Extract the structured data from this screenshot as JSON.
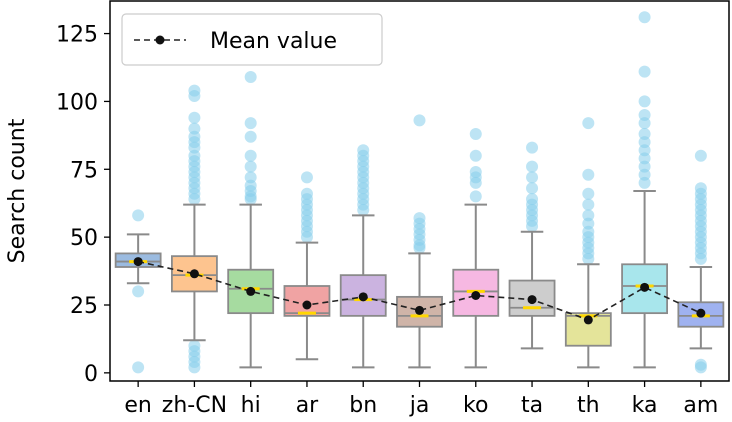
{
  "chart_data": {
    "type": "box",
    "title": "",
    "xlabel": "",
    "ylabel": "Search count",
    "ylim": [
      -3,
      137
    ],
    "yticks": [
      0,
      25,
      50,
      75,
      100,
      125
    ],
    "categories": [
      "en",
      "zh-CN",
      "hi",
      "ar",
      "bn",
      "ja",
      "ko",
      "ta",
      "th",
      "ka",
      "am"
    ],
    "colors": [
      "#9bbbe0",
      "#fdc48f",
      "#a6dba0",
      "#f0a3a3",
      "#cbb3e0",
      "#cfb4a8",
      "#f6b8e2",
      "#cdcdcd",
      "#e4e49a",
      "#a8e6ec",
      "#9fb2f0"
    ],
    "mean_color": "#222222",
    "median_color": "#ffd700",
    "outlier_color": "#87ceeb",
    "boxes": [
      {
        "q1": 39,
        "median": 41,
        "q3": 44,
        "whislo": 33,
        "whishi": 51,
        "mean": 41,
        "fliers": [
          58,
          30,
          2
        ]
      },
      {
        "q1": 30,
        "median": 36,
        "q3": 43,
        "whislo": 12,
        "whishi": 62,
        "mean": 36.5,
        "fliers": [
          104,
          102,
          94,
          90,
          87,
          85,
          83,
          80,
          78,
          76,
          74,
          72,
          70,
          68,
          66,
          64,
          10,
          8,
          6,
          4,
          2
        ]
      },
      {
        "q1": 22,
        "median": 31,
        "q3": 38,
        "whislo": 2,
        "whishi": 62,
        "mean": 30,
        "fliers": [
          109,
          92,
          87,
          80,
          76,
          72,
          69,
          67,
          65,
          64
        ]
      },
      {
        "q1": 21,
        "median": 22,
        "q3": 32,
        "whislo": 5,
        "whishi": 48,
        "mean": 25,
        "fliers": [
          72,
          66,
          64,
          62,
          60,
          58,
          56,
          54,
          52,
          50
        ]
      },
      {
        "q1": 21,
        "median": 27,
        "q3": 36,
        "whislo": 2,
        "whishi": 58,
        "mean": 28,
        "fliers": [
          82,
          80,
          78,
          76,
          74,
          72,
          70,
          68,
          66,
          64,
          62,
          60
        ]
      },
      {
        "q1": 17,
        "median": 21,
        "q3": 28,
        "whislo": 2,
        "whishi": 44,
        "mean": 23,
        "fliers": [
          93,
          57,
          55,
          53,
          51,
          49,
          47,
          46
        ]
      },
      {
        "q1": 21,
        "median": 30,
        "q3": 38,
        "whislo": 2,
        "whishi": 62,
        "mean": 28.5,
        "fliers": [
          88,
          80,
          74,
          72,
          70,
          65
        ]
      },
      {
        "q1": 21,
        "median": 24,
        "q3": 34,
        "whislo": 9,
        "whishi": 52,
        "mean": 27,
        "fliers": [
          83,
          76,
          72,
          68,
          64,
          62,
          60,
          58,
          56,
          54
        ]
      },
      {
        "q1": 10,
        "median": 21,
        "q3": 22,
        "whislo": 2,
        "whishi": 40,
        "mean": 19.5,
        "fliers": [
          92,
          73,
          66,
          62,
          58,
          55,
          52,
          50,
          48,
          46,
          44,
          42
        ]
      },
      {
        "q1": 22,
        "median": 32,
        "q3": 40,
        "whislo": 2,
        "whishi": 67,
        "mean": 31.5,
        "fliers": [
          131,
          111,
          100,
          95,
          92,
          88,
          85,
          82,
          79,
          76,
          73,
          70
        ]
      },
      {
        "q1": 17,
        "median": 21,
        "q3": 26,
        "whislo": 9,
        "whishi": 39,
        "mean": 22,
        "fliers": [
          80,
          68,
          66,
          64,
          62,
          60,
          58,
          56,
          54,
          52,
          50,
          48,
          46,
          44,
          42,
          3,
          2
        ]
      }
    ],
    "legend": {
      "label": "Mean value",
      "placement": "top-left"
    }
  }
}
